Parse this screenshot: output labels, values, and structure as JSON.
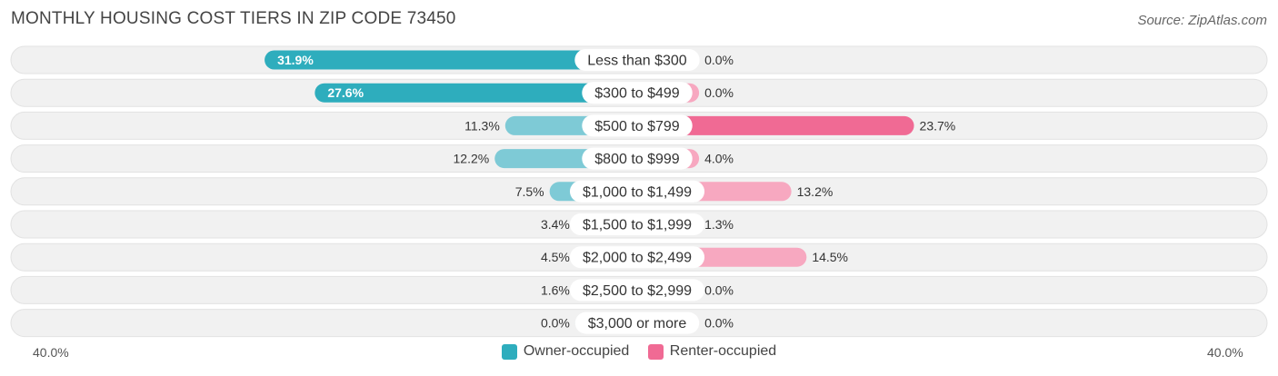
{
  "chart_data": {
    "type": "bar",
    "orientation": "horizontal-diverging",
    "title": "MONTHLY HOUSING COST TIERS IN ZIP CODE 73450",
    "source": "Source: ZipAtlas.com",
    "categories": [
      "Less than $300",
      "$300 to $499",
      "$500 to $799",
      "$800 to $999",
      "$1,000 to $1,499",
      "$1,500 to $1,999",
      "$2,000 to $2,499",
      "$2,500 to $2,999",
      "$3,000 or more"
    ],
    "series": [
      {
        "name": "Owner-occupied",
        "values": [
          31.9,
          27.6,
          11.3,
          12.2,
          7.5,
          3.4,
          4.5,
          1.6,
          0.0
        ],
        "labels": [
          "31.9%",
          "27.6%",
          "11.3%",
          "12.2%",
          "7.5%",
          "3.4%",
          "4.5%",
          "1.6%",
          "0.0%"
        ],
        "color": "#2EADBD",
        "color_light": "#7ECAD6"
      },
      {
        "name": "Renter-occupied",
        "values": [
          0.0,
          0.0,
          23.7,
          4.0,
          13.2,
          1.3,
          14.5,
          0.0,
          0.0
        ],
        "labels": [
          "0.0%",
          "0.0%",
          "23.7%",
          "4.0%",
          "13.2%",
          "1.3%",
          "14.5%",
          "0.0%",
          "0.0%"
        ],
        "color": "#F06A94",
        "color_light": "#F7A8C0"
      }
    ],
    "xlim": [
      -40,
      40
    ],
    "axis_min_label": "40.0%",
    "axis_max_label": "40.0%",
    "legend_position": "bottom-center",
    "grid": false
  }
}
